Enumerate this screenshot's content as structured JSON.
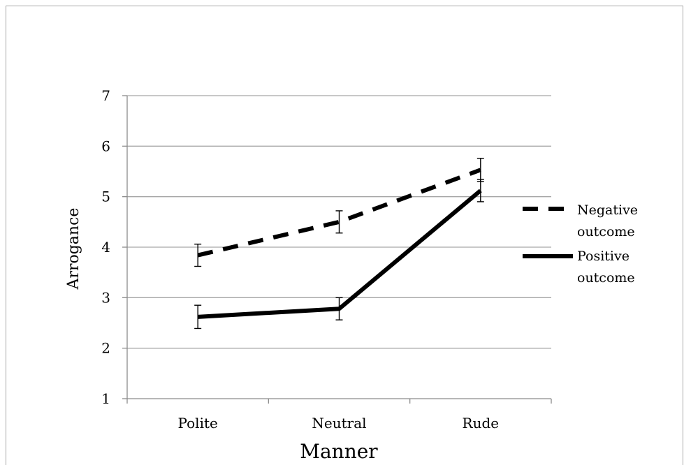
{
  "chart_data": {
    "type": "line",
    "title": "",
    "xlabel": "Manner",
    "ylabel": "Arrogance",
    "categories": [
      "Polite",
      "Neutral",
      "Rude"
    ],
    "ylim": [
      1,
      7
    ],
    "yticks": [
      "1",
      "2",
      "3",
      "4",
      "5",
      "6",
      "7"
    ],
    "grid": "horizontal",
    "legend_position": "right",
    "series": [
      {
        "name": "Negative outcome",
        "name_lines": [
          "Negative",
          "outcome"
        ],
        "style": "dashed",
        "color": "#000000",
        "values": [
          3.84,
          4.5,
          5.53
        ],
        "error": [
          0.22,
          0.22,
          0.23
        ]
      },
      {
        "name": "Positive outcome",
        "name_lines": [
          "Positive",
          "outcome"
        ],
        "style": "solid",
        "color": "#000000",
        "values": [
          2.62,
          2.78,
          5.12
        ],
        "error": [
          0.23,
          0.22,
          0.22
        ]
      }
    ]
  }
}
